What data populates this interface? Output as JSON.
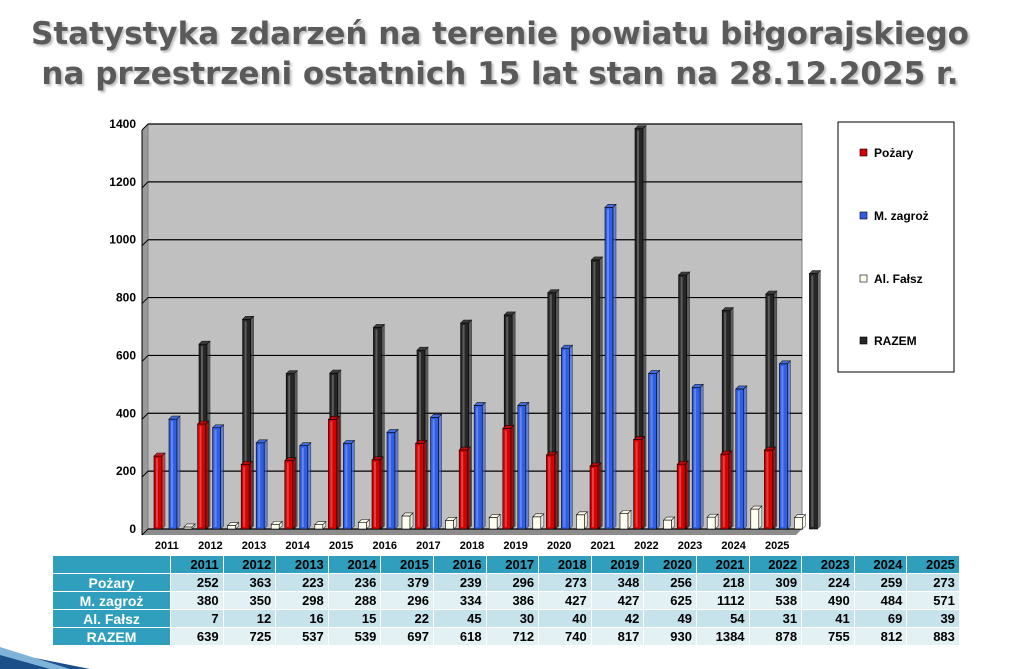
{
  "title": {
    "line1": "Statystyka zdarzeń na terenie powiatu biłgorajskiego",
    "line2": "na przestrzeni ostatnich 15 lat stan na 28.12.2025 r."
  },
  "colors": {
    "pozary": "#d90000",
    "zagrozenia": "#2f5fe8",
    "falsz": "#fffff0",
    "razem": "#262626",
    "plot_bg": "#c0c0c0",
    "table_header": "#2f9fbd"
  },
  "chart_data": {
    "type": "bar",
    "categories": [
      "2011",
      "2012",
      "2013",
      "2014",
      "2015",
      "2016",
      "2017",
      "2018",
      "2019",
      "2020",
      "2021",
      "2022",
      "2023",
      "2024",
      "2025"
    ],
    "series": [
      {
        "name": "Pożary",
        "values": [
          252,
          363,
          223,
          236,
          379,
          239,
          296,
          273,
          348,
          256,
          218,
          309,
          224,
          259,
          273
        ]
      },
      {
        "name": "M. zagroż",
        "values": [
          380,
          350,
          298,
          288,
          296,
          334,
          386,
          427,
          427,
          625,
          1112,
          538,
          490,
          484,
          571
        ]
      },
      {
        "name": "Al. Fałsz",
        "values": [
          7,
          12,
          16,
          15,
          22,
          45,
          30,
          40,
          42,
          49,
          54,
          31,
          41,
          69,
          39
        ]
      },
      {
        "name": "RAZEM",
        "values": [
          639,
          725,
          537,
          539,
          697,
          618,
          712,
          740,
          817,
          930,
          1384,
          878,
          755,
          812,
          883
        ]
      }
    ],
    "yticks": [
      "0",
      "200",
      "400",
      "600",
      "800",
      "1000",
      "1200",
      "1400"
    ],
    "ylim": [
      0,
      1400
    ],
    "grid": true,
    "legend_position": "right"
  },
  "table": {
    "header_years": [
      "2011",
      "2012",
      "2013",
      "2014",
      "2015",
      "2016",
      "2017",
      "2018",
      "2019",
      "2020",
      "2021",
      "2022",
      "2023",
      "2024",
      "2025"
    ],
    "rows": [
      {
        "label": "Pożary",
        "values": [
          "252",
          "363",
          "223",
          "236",
          "379",
          "239",
          "296",
          "273",
          "348",
          "256",
          "218",
          "309",
          "224",
          "259",
          "273"
        ]
      },
      {
        "label": "M. zagroż",
        "values": [
          "380",
          "350",
          "298",
          "288",
          "296",
          "334",
          "386",
          "427",
          "427",
          "625",
          "1112",
          "538",
          "490",
          "484",
          "571"
        ]
      },
      {
        "label": "Al. Fałsz",
        "values": [
          "7",
          "12",
          "16",
          "15",
          "22",
          "45",
          "30",
          "40",
          "42",
          "49",
          "54",
          "31",
          "41",
          "69",
          "39"
        ]
      },
      {
        "label": "RAZEM",
        "values": [
          "639",
          "725",
          "537",
          "539",
          "697",
          "618",
          "712",
          "740",
          "817",
          "930",
          "1384",
          "878",
          "755",
          "812",
          "883"
        ]
      }
    ]
  }
}
